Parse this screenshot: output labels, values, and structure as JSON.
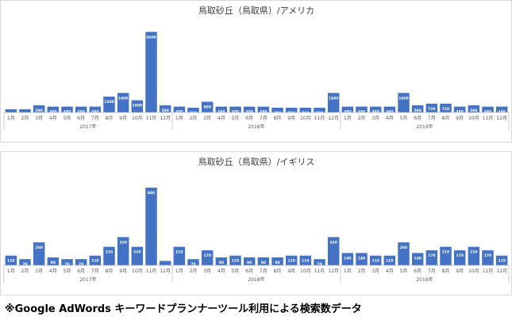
{
  "footnote": "※Google AdWords キーワードプランナーツール利用による検索数データ",
  "chart_data": [
    {
      "type": "bar",
      "title": "鳥取砂丘（鳥取県）/アメリカ",
      "categories": [
        "1月",
        "2月",
        "3月",
        "4月",
        "5月",
        "6月",
        "7月",
        "8月",
        "9月",
        "10月",
        "11月",
        "12月",
        "1月",
        "2月",
        "3月",
        "4月",
        "5月",
        "6月",
        "7月",
        "8月",
        "9月",
        "10月",
        "11月",
        "12月",
        "1月",
        "2月",
        "3月",
        "4月",
        "5月",
        "6月",
        "7月",
        "8月",
        "9月",
        "10月",
        "11月",
        "12月"
      ],
      "year_labels": [
        "2017年",
        "2018年",
        "2019年"
      ],
      "values": [
        260,
        260,
        590,
        480,
        480,
        480,
        480,
        1300,
        1600,
        1000,
        6600,
        590,
        480,
        390,
        880,
        480,
        480,
        480,
        480,
        390,
        390,
        390,
        390,
        1600,
        480,
        480,
        480,
        480,
        1600,
        590,
        720,
        720,
        480,
        590,
        480,
        480
      ],
      "data_labels": [
        "",
        "",
        "590",
        "480",
        "480",
        "480",
        "480",
        "1300",
        "1600",
        "1000",
        "6600",
        "590",
        "480",
        "390",
        "880",
        "480",
        "480",
        "480",
        "480",
        "390",
        "390",
        "390",
        "390",
        "1600",
        "480",
        "480",
        "480",
        "480",
        "1600",
        "590",
        "720",
        "720",
        "480",
        "590",
        "480",
        "480"
      ],
      "ylim": [
        0,
        7200
      ],
      "bar_color": "#4472c4",
      "grid": false,
      "legend": "none"
    },
    {
      "type": "bar",
      "title": "鳥取砂丘（鳥取県）/イギリス",
      "categories": [
        "1月",
        "2月",
        "3月",
        "4月",
        "5月",
        "6月",
        "7月",
        "8月",
        "9月",
        "10月",
        "11月",
        "12月",
        "1月",
        "2月",
        "3月",
        "4月",
        "5月",
        "6月",
        "7月",
        "8月",
        "9月",
        "10月",
        "11月",
        "12月",
        "1月",
        "2月",
        "3月",
        "4月",
        "5月",
        "6月",
        "7月",
        "8月",
        "9月",
        "10月",
        "11月",
        "12月"
      ],
      "year_labels": [
        "2017年",
        "2018年",
        "2019年"
      ],
      "values": [
        110,
        70,
        260,
        90,
        70,
        70,
        110,
        210,
        320,
        210,
        880,
        50,
        210,
        70,
        170,
        90,
        110,
        90,
        90,
        90,
        110,
        110,
        70,
        320,
        140,
        140,
        110,
        110,
        260,
        140,
        170,
        210,
        170,
        210,
        170,
        110
      ],
      "data_labels": [
        "110",
        "70",
        "260",
        "90",
        "70",
        "70",
        "110",
        "210",
        "320",
        "210",
        "880",
        "",
        "210",
        "70",
        "170",
        "90",
        "110",
        "90",
        "90",
        "90",
        "110",
        "110",
        "70",
        "320",
        "140",
        "140",
        "110",
        "110",
        "260",
        "140",
        "170",
        "210",
        "170",
        "210",
        "170",
        "110"
      ],
      "ylim": [
        0,
        960
      ],
      "bar_color": "#4472c4",
      "grid": false,
      "legend": "none"
    }
  ]
}
